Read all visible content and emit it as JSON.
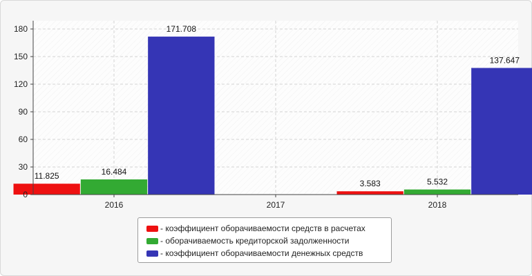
{
  "chart_data": {
    "type": "bar",
    "categories": [
      "2016",
      "2017",
      "2018"
    ],
    "series": [
      {
        "name": "- коэффициент оборачиваемости средств в расчетах",
        "color": "#ee1111",
        "values": [
          11.825,
          null,
          3.583
        ],
        "labels": [
          "11.825",
          "",
          "3.583"
        ]
      },
      {
        "name": "- оборачиваемость кредиторской задолженности",
        "color": "#33aa33",
        "values": [
          16.484,
          null,
          5.532
        ],
        "labels": [
          "16.484",
          "",
          "5.532"
        ]
      },
      {
        "name": "- коэффициент оборачиваемости денежных средств",
        "color": "#3535b5",
        "values": [
          171.708,
          null,
          137.647
        ],
        "labels": [
          "171.708",
          "",
          "137.647"
        ]
      }
    ],
    "y_ticks": [
      "0",
      "30",
      "60",
      "90",
      "120",
      "150",
      "180"
    ],
    "ylim": [
      0,
      189
    ],
    "grid": true,
    "legend_position": "bottom"
  }
}
